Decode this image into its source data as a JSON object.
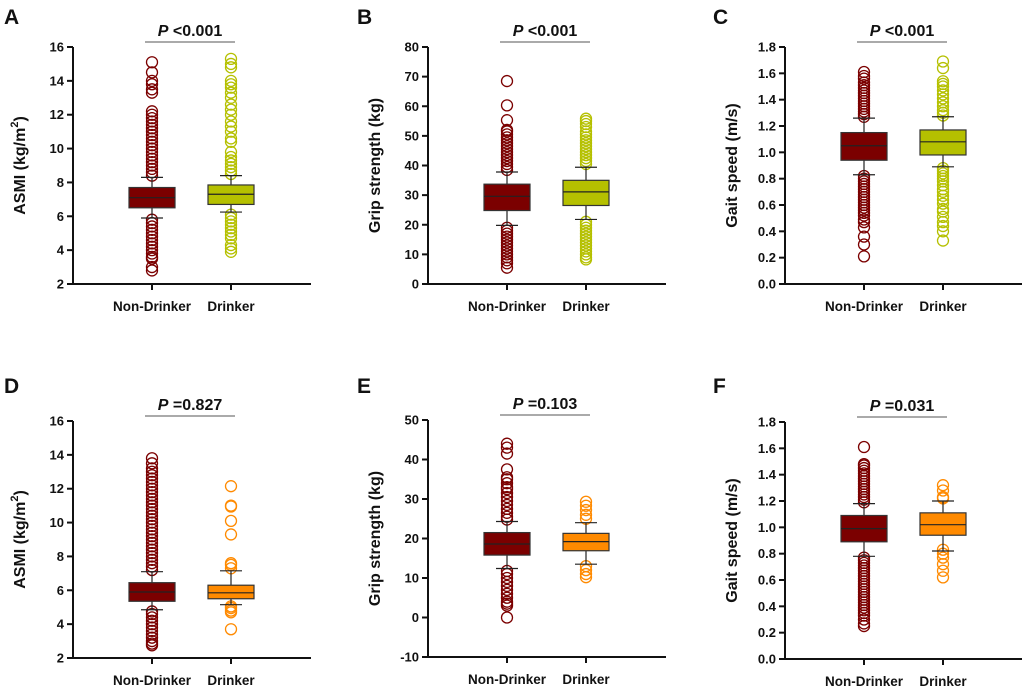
{
  "figure": {
    "categories": [
      "Non-Drinker",
      "Drinker"
    ]
  },
  "chart_data": [
    {
      "panel": "A",
      "type": "box",
      "ylabel": "ASMI (kg/m",
      "ylabel_sup": "2",
      "ylabel_suffix": ")",
      "ylim": [
        2,
        16
      ],
      "yticks": [
        2,
        4,
        6,
        8,
        10,
        12,
        14,
        16
      ],
      "ytick_labels": [
        "2",
        "4",
        "6",
        "8",
        "10",
        "12",
        "14",
        "16"
      ],
      "categories": [
        "Non-Drinker",
        "Drinker"
      ],
      "p_label": "P",
      "p_value": " <0.001",
      "series": [
        {
          "name": "Non-Drinker",
          "color": "#7b0000",
          "q1": 6.5,
          "median": 7.1,
          "q3": 7.7,
          "whisker_low": 5.9,
          "whisker_high": 8.3,
          "outliers_high": [
            8.4,
            8.6,
            8.8,
            9.0,
            9.2,
            9.4,
            9.6,
            9.8,
            10.0,
            10.2,
            10.4,
            10.6,
            10.8,
            11.0,
            11.2,
            11.4,
            11.6,
            11.8,
            12.0,
            12.2,
            13.3,
            13.5,
            13.8,
            14.0,
            14.5,
            15.1
          ],
          "outliers_low": [
            5.8,
            5.6,
            5.4,
            5.2,
            5.0,
            4.8,
            4.6,
            4.4,
            4.2,
            4.0,
            3.8,
            3.6,
            3.5,
            3.0,
            2.8
          ]
        },
        {
          "name": "Drinker",
          "color": "#b5c000",
          "q1": 6.7,
          "median": 7.3,
          "q3": 7.85,
          "whisker_low": 6.25,
          "whisker_high": 8.4,
          "outliers_high": [
            8.5,
            8.7,
            8.9,
            9.1,
            9.3,
            9.5,
            9.8,
            10.4,
            10.6,
            11.0,
            11.3,
            11.6,
            12.0,
            12.3,
            12.6,
            13.0,
            13.3,
            13.6,
            13.8,
            14.0,
            14.8,
            15.0,
            15.3
          ],
          "outliers_low": [
            6.1,
            5.9,
            5.7,
            5.5,
            5.3,
            5.1,
            4.9,
            4.7,
            4.3,
            4.1,
            3.9
          ]
        }
      ]
    },
    {
      "panel": "B",
      "type": "box",
      "ylabel": "Grip strength (kg)",
      "ylabel_sup": "",
      "ylabel_suffix": "",
      "ylim": [
        0,
        80
      ],
      "yticks": [
        0,
        10,
        20,
        30,
        40,
        50,
        60,
        70,
        80
      ],
      "ytick_labels": [
        "0",
        "10",
        "20",
        "30",
        "40",
        "50",
        "60",
        "70",
        "80"
      ],
      "categories": [
        "Non-Drinker",
        "Drinker"
      ],
      "p_label": "P",
      "p_value": " <0.001",
      "series": [
        {
          "name": "Non-Drinker",
          "color": "#7b0000",
          "q1": 24.8,
          "median": 29.6,
          "q3": 33.7,
          "whisker_low": 19.8,
          "whisker_high": 37.8,
          "outliers_high": [
            38.5,
            39.5,
            40.5,
            41.5,
            42.5,
            43.5,
            44.5,
            45.5,
            46.5,
            47.5,
            48.5,
            49.5,
            50.5,
            51.5,
            52.0,
            55.3,
            60.3,
            68.5
          ],
          "outliers_low": [
            19.0,
            18.0,
            17.0,
            16.0,
            15.0,
            14.0,
            13.0,
            12.0,
            11.0,
            10.0,
            9.0,
            8.0,
            7.0,
            5.5
          ]
        },
        {
          "name": "Drinker",
          "color": "#b5c000",
          "q1": 26.5,
          "median": 31.1,
          "q3": 35.0,
          "whisker_low": 21.8,
          "whisker_high": 39.4,
          "outliers_high": [
            40.5,
            41.5,
            42.5,
            43.5,
            44.5,
            45.5,
            46.5,
            47.5,
            48.5,
            49.5,
            50.5,
            51.5,
            53.0,
            54.0,
            55.0,
            55.8
          ],
          "outliers_low": [
            21.0,
            20.0,
            19.0,
            18.0,
            17.0,
            16.0,
            15.0,
            14.0,
            13.0,
            12.0,
            11.0,
            10.0,
            9.0,
            8.3
          ]
        }
      ]
    },
    {
      "panel": "C",
      "type": "box",
      "ylabel": "Gait speed (m/s)",
      "ylabel_sup": "",
      "ylabel_suffix": "",
      "ylim": [
        0,
        1.8
      ],
      "yticks": [
        0,
        0.2,
        0.4,
        0.6,
        0.8,
        1.0,
        1.2,
        1.4,
        1.6,
        1.8
      ],
      "ytick_labels": [
        "0.0",
        "0.2",
        "0.4",
        "0.6",
        "0.8",
        "1.0",
        "1.2",
        "1.4",
        "1.6",
        "1.8"
      ],
      "categories": [
        "Non-Drinker",
        "Drinker"
      ],
      "p_label": "P",
      "p_value": " <0.001",
      "series": [
        {
          "name": "Non-Drinker",
          "color": "#7b0000",
          "q1": 0.94,
          "median": 1.05,
          "q3": 1.15,
          "whisker_low": 0.83,
          "whisker_high": 1.26,
          "outliers_high": [
            1.27,
            1.29,
            1.31,
            1.33,
            1.35,
            1.37,
            1.39,
            1.41,
            1.43,
            1.45,
            1.47,
            1.49,
            1.51,
            1.53,
            1.56,
            1.58,
            1.61
          ],
          "outliers_low": [
            0.82,
            0.8,
            0.78,
            0.76,
            0.74,
            0.72,
            0.7,
            0.68,
            0.66,
            0.64,
            0.62,
            0.6,
            0.58,
            0.56,
            0.54,
            0.52,
            0.49,
            0.47,
            0.43,
            0.36,
            0.3,
            0.21
          ]
        },
        {
          "name": "Drinker",
          "color": "#b5c000",
          "q1": 0.98,
          "median": 1.08,
          "q3": 1.17,
          "whisker_low": 0.89,
          "whisker_high": 1.27,
          "outliers_high": [
            1.28,
            1.3,
            1.32,
            1.35,
            1.38,
            1.41,
            1.44,
            1.47,
            1.5,
            1.52,
            1.54,
            1.64,
            1.69
          ],
          "outliers_low": [
            0.88,
            0.86,
            0.84,
            0.82,
            0.8,
            0.78,
            0.75,
            0.72,
            0.7,
            0.67,
            0.64,
            0.61,
            0.57,
            0.55,
            0.51,
            0.47,
            0.44,
            0.4,
            0.33
          ]
        }
      ]
    },
    {
      "panel": "D",
      "type": "box",
      "ylabel": "ASMI (kg/m",
      "ylabel_sup": "2",
      "ylabel_suffix": ")",
      "ylim": [
        2,
        16
      ],
      "yticks": [
        2,
        4,
        6,
        8,
        10,
        12,
        14,
        16
      ],
      "ytick_labels": [
        "2",
        "4",
        "6",
        "8",
        "10",
        "12",
        "14",
        "16"
      ],
      "categories": [
        "Non-Drinker",
        "Drinker"
      ],
      "p_label": "P",
      "p_value": " =0.827",
      "series": [
        {
          "name": "Non-Drinker",
          "color": "#7b0000",
          "q1": 5.35,
          "median": 5.9,
          "q3": 6.45,
          "whisker_low": 4.85,
          "whisker_high": 7.1,
          "outliers_high": [
            7.2,
            7.4,
            7.6,
            7.8,
            8.0,
            8.2,
            8.4,
            8.6,
            8.8,
            9.0,
            9.2,
            9.4,
            9.6,
            9.8,
            10.0,
            10.2,
            10.4,
            10.6,
            10.8,
            11.0,
            11.2,
            11.4,
            11.6,
            11.8,
            12.0,
            12.2,
            12.4,
            12.6,
            12.8,
            13.0,
            13.2,
            13.5,
            13.8
          ],
          "outliers_low": [
            4.75,
            4.6,
            4.4,
            4.2,
            4.0,
            3.8,
            3.6,
            3.4,
            3.2,
            3.0,
            2.85,
            2.75
          ]
        },
        {
          "name": "Drinker",
          "color": "#ff8a00",
          "q1": 5.5,
          "median": 5.85,
          "q3": 6.3,
          "whisker_low": 5.15,
          "whisker_high": 7.15,
          "outliers_high": [
            7.3,
            7.5,
            7.6,
            9.3,
            10.1,
            10.95,
            11.0,
            12.15
          ],
          "outliers_low": [
            5.05,
            4.95,
            4.8,
            4.7,
            3.7
          ]
        }
      ]
    },
    {
      "panel": "E",
      "type": "box",
      "ylabel": "Grip strength (kg)",
      "ylabel_sup": "",
      "ylabel_suffix": "",
      "ylim": [
        -10,
        50
      ],
      "yticks": [
        -10,
        0,
        10,
        20,
        30,
        40,
        50
      ],
      "ytick_labels": [
        "-10",
        "0",
        "10",
        "20",
        "30",
        "40",
        "50"
      ],
      "categories": [
        "Non-Drinker",
        "Drinker"
      ],
      "p_label": "P",
      "p_value": " =0.103",
      "series": [
        {
          "name": "Non-Drinker",
          "color": "#7b0000",
          "q1": 15.8,
          "median": 18.6,
          "q3": 21.5,
          "whisker_low": 12.4,
          "whisker_high": 24.3,
          "outliers_high": [
            24.8,
            25.5,
            26.5,
            27.5,
            28.5,
            29.5,
            30.5,
            31.5,
            32.5,
            33.0,
            34.0,
            35.0,
            35.5,
            37.5,
            41.5,
            43.0,
            44.0
          ],
          "outliers_low": [
            11.8,
            11.0,
            10.0,
            9.0,
            8.0,
            7.0,
            6.0,
            5.0,
            4.0,
            3.5,
            3.0,
            0.0
          ]
        },
        {
          "name": "Drinker",
          "color": "#ff8a00",
          "q1": 16.9,
          "median": 19.2,
          "q3": 21.3,
          "whisker_low": 13.5,
          "whisker_high": 24.0,
          "outliers_high": [
            25.0,
            26.0,
            27.2,
            28.3,
            29.3
          ],
          "outliers_low": [
            13.0,
            12.0,
            11.0,
            10.2
          ]
        }
      ]
    },
    {
      "panel": "F",
      "type": "box",
      "ylabel": "Gait speed (m/s)",
      "ylabel_sup": "",
      "ylabel_suffix": "",
      "ylim": [
        0,
        1.8
      ],
      "yticks": [
        0,
        0.2,
        0.4,
        0.6,
        0.8,
        1.0,
        1.2,
        1.4,
        1.6,
        1.8
      ],
      "ytick_labels": [
        "0.0",
        "0.2",
        "0.4",
        "0.6",
        "0.8",
        "1.0",
        "1.2",
        "1.4",
        "1.6",
        "1.8"
      ],
      "categories": [
        "Non-Drinker",
        "Drinker"
      ],
      "p_label": "P",
      "p_value": " =0.031",
      "series": [
        {
          "name": "Non-Drinker",
          "color": "#7b0000",
          "q1": 0.89,
          "median": 0.99,
          "q3": 1.09,
          "whisker_low": 0.78,
          "whisker_high": 1.18,
          "outliers_high": [
            1.19,
            1.21,
            1.23,
            1.25,
            1.27,
            1.29,
            1.31,
            1.33,
            1.35,
            1.37,
            1.39,
            1.41,
            1.43,
            1.45,
            1.47,
            1.48,
            1.61
          ],
          "outliers_low": [
            0.77,
            0.75,
            0.73,
            0.71,
            0.69,
            0.67,
            0.65,
            0.63,
            0.61,
            0.59,
            0.57,
            0.55,
            0.53,
            0.51,
            0.49,
            0.47,
            0.45,
            0.43,
            0.41,
            0.39,
            0.37,
            0.35,
            0.33,
            0.3,
            0.27,
            0.25
          ]
        },
        {
          "name": "Drinker",
          "color": "#ff8a00",
          "q1": 0.94,
          "median": 1.02,
          "q3": 1.11,
          "whisker_low": 0.82,
          "whisker_high": 1.2,
          "outliers_high": [
            1.22,
            1.23,
            1.28,
            1.32
          ],
          "outliers_low": [
            0.83,
            0.8,
            0.77,
            0.72,
            0.67,
            0.62
          ]
        }
      ]
    }
  ]
}
